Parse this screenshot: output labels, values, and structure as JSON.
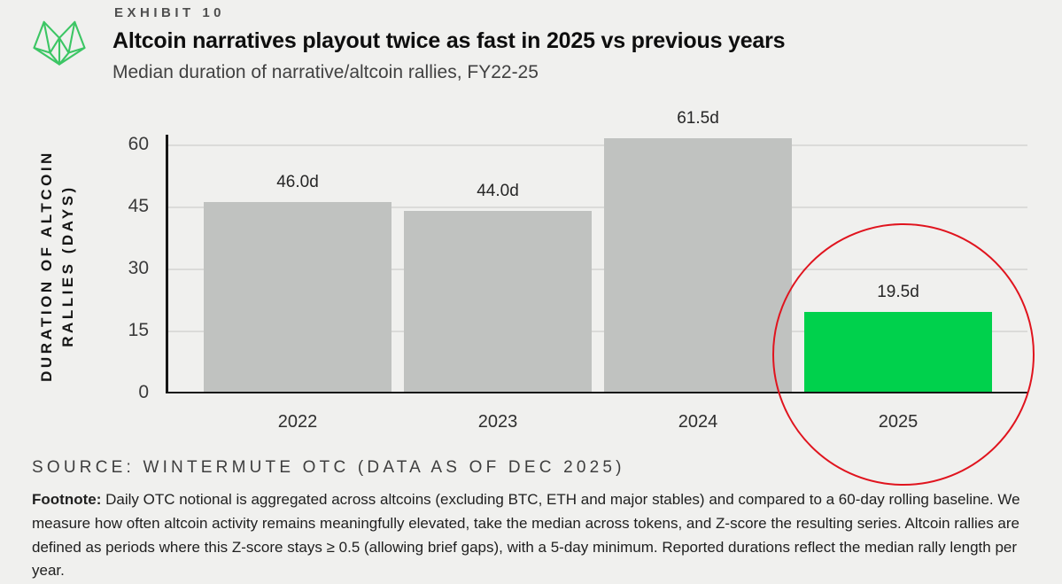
{
  "header": {
    "exhibit_label": "EXHIBIT 10",
    "title": "Altcoin narratives playout twice as fast in 2025 vs previous years",
    "subtitle": "Median duration of narrative/altcoin rallies, FY22-25",
    "logo_icon": "wintermute-logo"
  },
  "chart_data": {
    "type": "bar",
    "categories": [
      "2022",
      "2023",
      "2024",
      "2025"
    ],
    "values": [
      46.0,
      44.0,
      61.5,
      19.5
    ],
    "bar_labels": [
      "46.0d",
      "44.0d",
      "61.5d",
      "19.5d"
    ],
    "title": "Altcoin narratives playout twice as fast in 2025 vs previous years",
    "subtitle": "Median duration of narrative/altcoin rallies, FY22-25",
    "ylabel_line1": "DURATION OF ALTCOIN",
    "ylabel_line2": "RALLIES (DAYS)",
    "xlabel": "",
    "yticks": [
      0,
      15,
      30,
      45,
      60
    ],
    "ylim": [
      0,
      62
    ],
    "grid": "horizontal",
    "legend": "none",
    "highlight_index": 3,
    "bar_color_default": "#c0c2c0",
    "bar_color_highlight": "#00d14c",
    "annotation": "red-circle-around-2025-bar"
  },
  "source": "SOURCE: WINTERMUTE OTC (DATA AS OF DEC 2025)",
  "footnote": {
    "label": "Footnote:",
    "text": " Daily OTC notional is aggregated across altcoins (excluding BTC, ETH and major stables) and compared to a 60-day rolling baseline. We measure how often altcoin activity remains meaningfully elevated, take the median across tokens, and Z-score the resulting series. Altcoin rallies are defined as periods where this Z-score stays ≥ 0.5 (allowing brief gaps), with a 5-day minimum. Reported durations reflect the median rally length per year."
  },
  "colors": {
    "background": "#f0f0ee",
    "bar_gray": "#c0c2c0",
    "bar_green": "#00d14c",
    "annotation_red": "#e0141e",
    "logo_green": "#3cc664",
    "axis_black": "#161616",
    "gridline_gray": "#dbdbd9"
  }
}
